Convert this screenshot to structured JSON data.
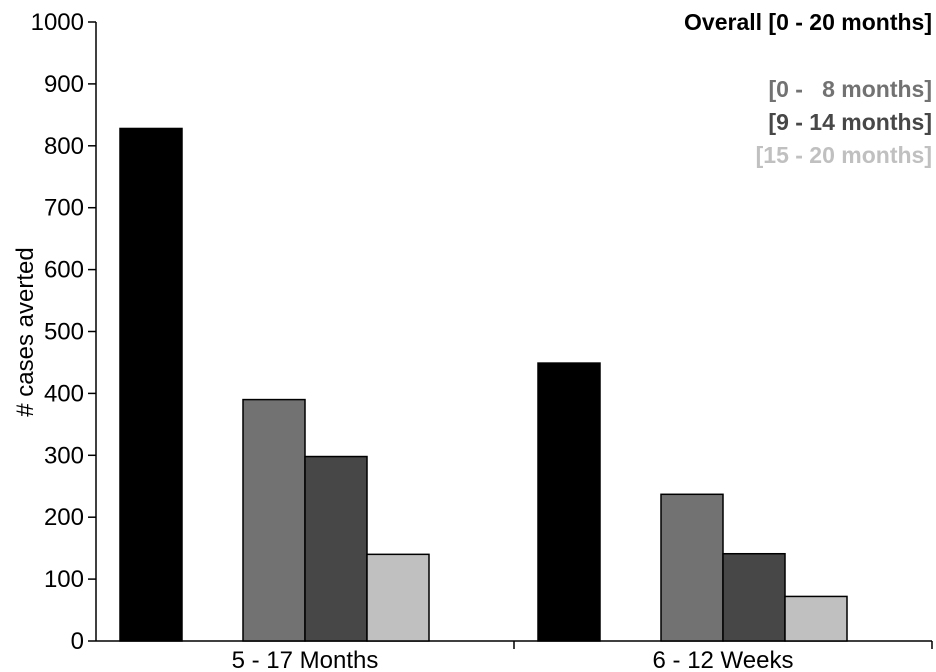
{
  "chart_data": {
    "type": "bar",
    "title": "",
    "xlabel": "",
    "ylabel": "# cases averted",
    "ylim": [
      0,
      1000
    ],
    "yticks": [
      0,
      100,
      200,
      300,
      400,
      500,
      600,
      700,
      800,
      900,
      1000
    ],
    "categories": [
      "5 - 17 Months",
      "6 - 12 Weeks"
    ],
    "grid": false,
    "legend_placement": "top-right",
    "series": [
      {
        "name": "Overall [0 - 20 months]",
        "color": "#000000",
        "values": [
          828,
          449
        ]
      },
      {
        "name": "[0 -   8 months]",
        "color": "#727272",
        "values": [
          390,
          237
        ]
      },
      {
        "name": "[9 - 14 months]",
        "color": "#474747",
        "values": [
          298,
          141
        ]
      },
      {
        "name": "[15 - 20 months]",
        "color": "#c0c0c0",
        "values": [
          140,
          72
        ]
      }
    ]
  }
}
